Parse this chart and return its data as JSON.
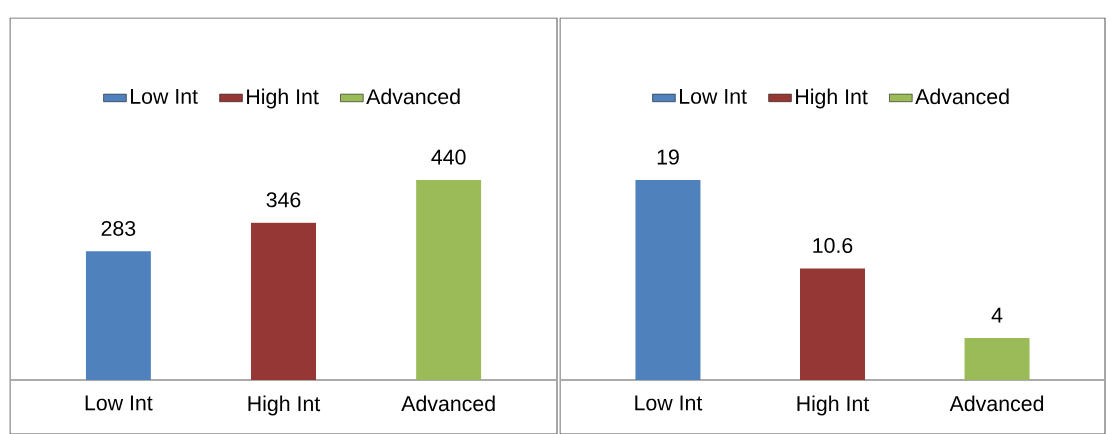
{
  "chart_data": [
    {
      "type": "bar",
      "categories": [
        "Low Int",
        "High Int",
        "Advanced"
      ],
      "series": [
        {
          "name": "Low Int",
          "color": "#4f81bd",
          "values": [
            283,
            null,
            null
          ]
        },
        {
          "name": "High Int",
          "color": "#953735",
          "values": [
            null,
            346,
            null
          ]
        },
        {
          "name": "Advanced",
          "color": "#9bbb59",
          "values": [
            null,
            null,
            440
          ]
        }
      ],
      "data_labels": true,
      "legend": "top"
    },
    {
      "type": "bar",
      "categories": [
        "Low Int",
        "High Int",
        "Advanced"
      ],
      "series": [
        {
          "name": "Low Int",
          "color": "#4f81bd",
          "values": [
            19,
            null,
            null
          ]
        },
        {
          "name": "High Int",
          "color": "#953735",
          "values": [
            null,
            10.6,
            null
          ]
        },
        {
          "name": "Advanced",
          "color": "#9bbb59",
          "values": [
            null,
            null,
            4
          ]
        }
      ],
      "data_labels": true,
      "legend": "top"
    }
  ]
}
